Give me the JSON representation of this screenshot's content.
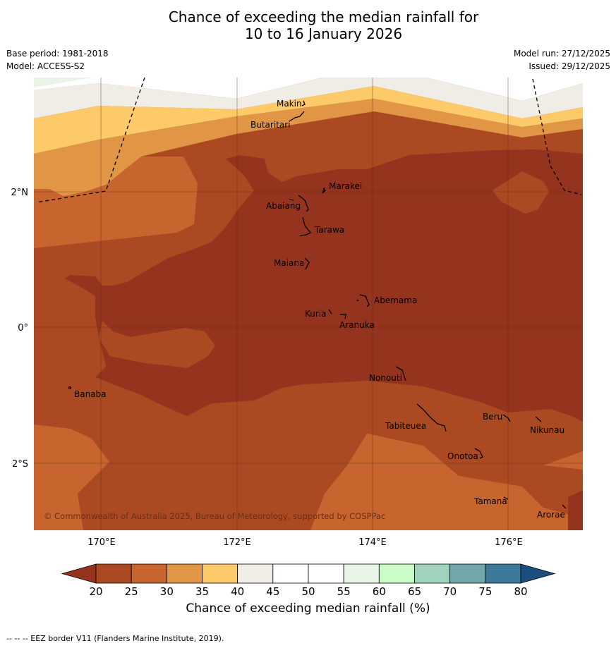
{
  "title": {
    "line1": "Chance of exceeding the median rainfall for",
    "line2": "10 to 16 January 2026"
  },
  "meta": {
    "base_period": "Base period: 1981-2018",
    "model": "Model: ACCESS-S2",
    "model_run": "Model run: 27/12/2025",
    "issued": "Issued: 29/12/2025"
  },
  "map": {
    "lon_ticks": [
      "170°E",
      "172°E",
      "174°E",
      "176°E"
    ],
    "lat_ticks": [
      "2°N",
      "0°",
      "2°S"
    ],
    "places": [
      {
        "name": "Makin"
      },
      {
        "name": "Butaritari"
      },
      {
        "name": "Marakei"
      },
      {
        "name": "Abaiang"
      },
      {
        "name": "Tarawa"
      },
      {
        "name": "Maiana"
      },
      {
        "name": "Abemama"
      },
      {
        "name": "Kuria"
      },
      {
        "name": "Aranuka"
      },
      {
        "name": "Nonouti"
      },
      {
        "name": "Banaba"
      },
      {
        "name": "Beru"
      },
      {
        "name": "Tabiteuea"
      },
      {
        "name": "Nikunau"
      },
      {
        "name": "Onotoa"
      },
      {
        "name": "Tamana"
      },
      {
        "name": "Arorae"
      }
    ],
    "copyright": "© Commonwealth of Australia 2025, Bureau of Meteorology, supported by COSPPac"
  },
  "colorbar": {
    "ticks": [
      "20",
      "25",
      "30",
      "35",
      "40",
      "45",
      "50",
      "55",
      "60",
      "65",
      "70",
      "75",
      "80"
    ],
    "colors": [
      "#ab4a22",
      "#c8642e",
      "#e09645",
      "#fdca6a",
      "#f0ece6",
      "#ffffff",
      "#ffffff",
      "#e7f4e6",
      "#cbfbc9",
      "#a1d2be",
      "#71a7a8",
      "#3e7898"
    ],
    "under_color": "#94331e",
    "over_color": "#1c4f80",
    "label": "Chance of exceeding median rainfall (%)"
  },
  "footer": "--  --  -- EEZ border V11 (Flanders Marine Institute, 2019)."
}
